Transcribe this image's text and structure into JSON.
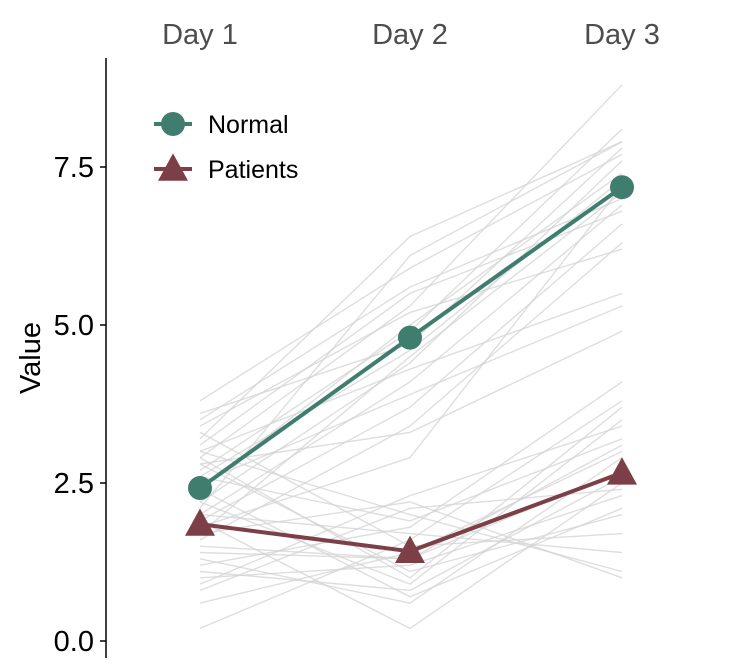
{
  "chart_data": {
    "type": "line",
    "title": "",
    "xlabel": "",
    "ylabel": "Value",
    "categories": [
      "Day 1",
      "Day 2",
      "Day 3"
    ],
    "ylim": [
      0,
      9.3
    ],
    "yticks": [
      0.0,
      2.5,
      5.0,
      7.5
    ],
    "ytick_labels": [
      "0.0",
      "2.5",
      "5.0",
      "7.5"
    ],
    "x_axis_position": "top",
    "grid": false,
    "legend_position": "top-left",
    "series": [
      {
        "name": "Normal",
        "values": [
          2.42,
          4.8,
          7.18
        ],
        "color": "#3f7d6e",
        "marker": "circle"
      },
      {
        "name": "Patients",
        "values": [
          1.85,
          1.42,
          2.66
        ],
        "color": "#7d3f47",
        "marker": "triangle"
      }
    ],
    "background_lines": {
      "color": "#d3d3d3",
      "individuals": [
        [
          2.2,
          4.4,
          7.6
        ],
        [
          2.9,
          5.3,
          8.8
        ],
        [
          1.9,
          3.7,
          6.6
        ],
        [
          3.2,
          6.4,
          7.9
        ],
        [
          2.6,
          4.6,
          7.3
        ],
        [
          3.5,
          5.6,
          7.0
        ],
        [
          2.0,
          4.1,
          6.9
        ],
        [
          3.8,
          5.9,
          7.7
        ],
        [
          1.6,
          3.4,
          6.3
        ],
        [
          2.4,
          5.0,
          7.4
        ],
        [
          3.0,
          4.3,
          5.5
        ],
        [
          2.8,
          3.3,
          4.9
        ],
        [
          1.7,
          4.5,
          7.1
        ],
        [
          3.4,
          5.2,
          6.2
        ],
        [
          2.1,
          6.1,
          7.9
        ],
        [
          3.6,
          4.7,
          7.8
        ],
        [
          2.5,
          3.9,
          5.3
        ],
        [
          3.1,
          5.5,
          6.8
        ],
        [
          1.8,
          2.9,
          7.2
        ],
        [
          2.7,
          4.9,
          8.1
        ],
        [
          1.5,
          1.3,
          2.7
        ],
        [
          2.2,
          0.9,
          3.5
        ],
        [
          0.2,
          1.6,
          3.8
        ],
        [
          3.0,
          2.0,
          1.1
        ],
        [
          1.0,
          1.2,
          2.3
        ],
        [
          2.6,
          1.9,
          3.2
        ],
        [
          1.3,
          0.6,
          2.9
        ],
        [
          2.8,
          1.1,
          2.0
        ],
        [
          0.9,
          2.3,
          3.4
        ],
        [
          1.9,
          0.2,
          2.5
        ],
        [
          3.3,
          1.5,
          1.7
        ],
        [
          1.2,
          1.8,
          4.1
        ],
        [
          2.4,
          0.7,
          2.1
        ],
        [
          0.6,
          1.4,
          3.0
        ],
        [
          1.7,
          2.2,
          1.0
        ],
        [
          2.9,
          1.0,
          3.7
        ],
        [
          1.1,
          0.8,
          2.6
        ],
        [
          2.0,
          1.7,
          1.4
        ],
        [
          0.8,
          2.1,
          2.4
        ],
        [
          1.4,
          1.3,
          3.1
        ]
      ]
    }
  }
}
